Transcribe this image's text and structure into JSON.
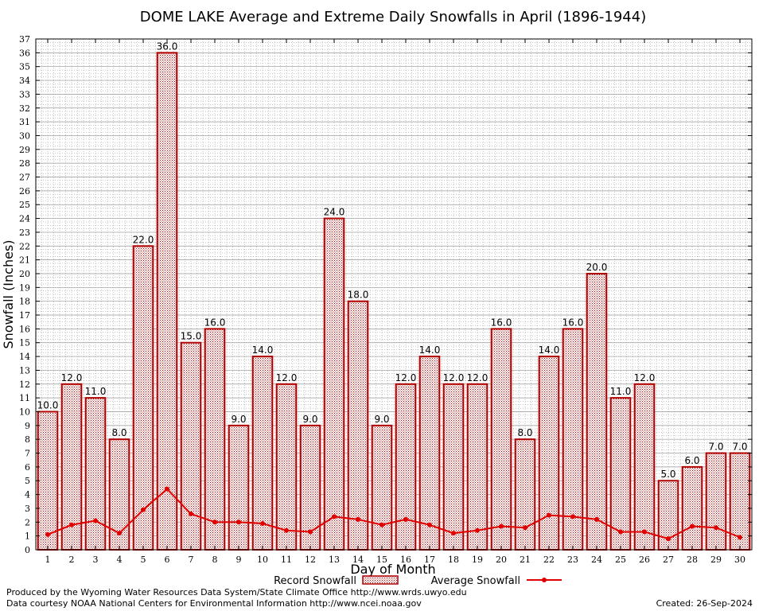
{
  "chart_data": {
    "type": "bar",
    "title": "DOME LAKE Average and Extreme Daily Snowfalls in April (1896-1944)",
    "xlabel": "Day of Month",
    "ylabel": "Snowfall (Inches)",
    "ylim": [
      0,
      37
    ],
    "yticks": [
      "0",
      "1",
      "2",
      "3",
      "4",
      "5",
      "6",
      "7",
      "8",
      "9",
      "10",
      "11",
      "12",
      "13",
      "14",
      "15",
      "16",
      "17",
      "18",
      "19",
      "20",
      "21",
      "22",
      "23",
      "24",
      "25",
      "26",
      "27",
      "28",
      "29",
      "30",
      "31",
      "32",
      "33",
      "34",
      "35",
      "36",
      "37"
    ],
    "categories": [
      "1",
      "2",
      "3",
      "4",
      "5",
      "6",
      "7",
      "8",
      "9",
      "10",
      "11",
      "12",
      "13",
      "14",
      "15",
      "16",
      "17",
      "18",
      "19",
      "20",
      "21",
      "22",
      "23",
      "24",
      "25",
      "26",
      "27",
      "28",
      "29",
      "30"
    ],
    "series": [
      {
        "name": "Record Snowfall",
        "kind": "bar",
        "values": [
          10.0,
          12.0,
          11.0,
          8.0,
          22.0,
          36.0,
          15.0,
          16.0,
          9.0,
          14.0,
          12.0,
          9.0,
          24.0,
          18.0,
          9.0,
          12.0,
          14.0,
          12.0,
          12.0,
          16.0,
          8.0,
          14.0,
          16.0,
          20.0,
          11.0,
          12.0,
          5.0,
          6.0,
          7.0,
          7.0
        ],
        "labels": [
          "10.0",
          "12.0",
          "11.0",
          "8.0",
          "22.0",
          "36.0",
          "15.0",
          "16.0",
          "9.0",
          "14.0",
          "12.0",
          "9.0",
          "24.0",
          "18.0",
          "9.0",
          "12.0",
          "14.0",
          "12.0",
          "12.0",
          "16.0",
          "8.0",
          "14.0",
          "16.0",
          "20.0",
          "11.0",
          "12.0",
          "5.0",
          "6.0",
          "7.0",
          "7.0"
        ]
      },
      {
        "name": "Average Snowfall",
        "kind": "line",
        "values": [
          1.1,
          1.8,
          2.1,
          1.2,
          2.9,
          4.4,
          2.6,
          2.0,
          2.0,
          1.9,
          1.4,
          1.3,
          2.4,
          2.2,
          1.8,
          2.2,
          1.8,
          1.2,
          1.4,
          1.7,
          1.6,
          2.5,
          2.4,
          2.2,
          1.3,
          1.3,
          0.8,
          1.7,
          1.6,
          0.9
        ]
      }
    ],
    "colors": {
      "bar_stroke": "#b00000",
      "bar_fill": "#e8c8c8",
      "line": "#e00000",
      "grid": "#a0a0a0"
    }
  },
  "footer": {
    "line1": "Produced by the Wyoming Water Resources Data System/State Climate Office http://www.wrds.uwyo.edu",
    "line2": "Data courtesy NOAA National Centers for Environmental Information http://www.ncei.noaa.gov",
    "created": "Created:  26-Sep-2024"
  }
}
